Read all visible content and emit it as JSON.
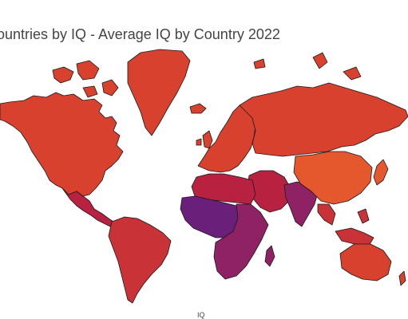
{
  "title": "ountries by IQ - Average IQ by Country 2022",
  "legend_title": "IQ",
  "colors": {
    "high": "#d9412f",
    "east_asia": "#e5572d",
    "mid": "#c93236",
    "low_mid": "#b82240",
    "low": "#8e2264",
    "lowest": "#6a1f7a",
    "border": "#1a1a1a"
  },
  "regions": [
    {
      "name": "north-america",
      "tier": "high"
    },
    {
      "name": "greenland",
      "tier": "high"
    },
    {
      "name": "europe",
      "tier": "high"
    },
    {
      "name": "russia",
      "tier": "high"
    },
    {
      "name": "east-asia",
      "tier": "east_asia"
    },
    {
      "name": "middle-east",
      "tier": "low_mid"
    },
    {
      "name": "south-asia",
      "tier": "low"
    },
    {
      "name": "southeast-asia",
      "tier": "mid"
    },
    {
      "name": "australia",
      "tier": "high"
    },
    {
      "name": "central-america",
      "tier": "low_mid"
    },
    {
      "name": "south-america",
      "tier": "mid"
    },
    {
      "name": "north-africa",
      "tier": "low_mid"
    },
    {
      "name": "africa",
      "tier": "low"
    },
    {
      "name": "west-africa",
      "tier": "lowest"
    }
  ]
}
